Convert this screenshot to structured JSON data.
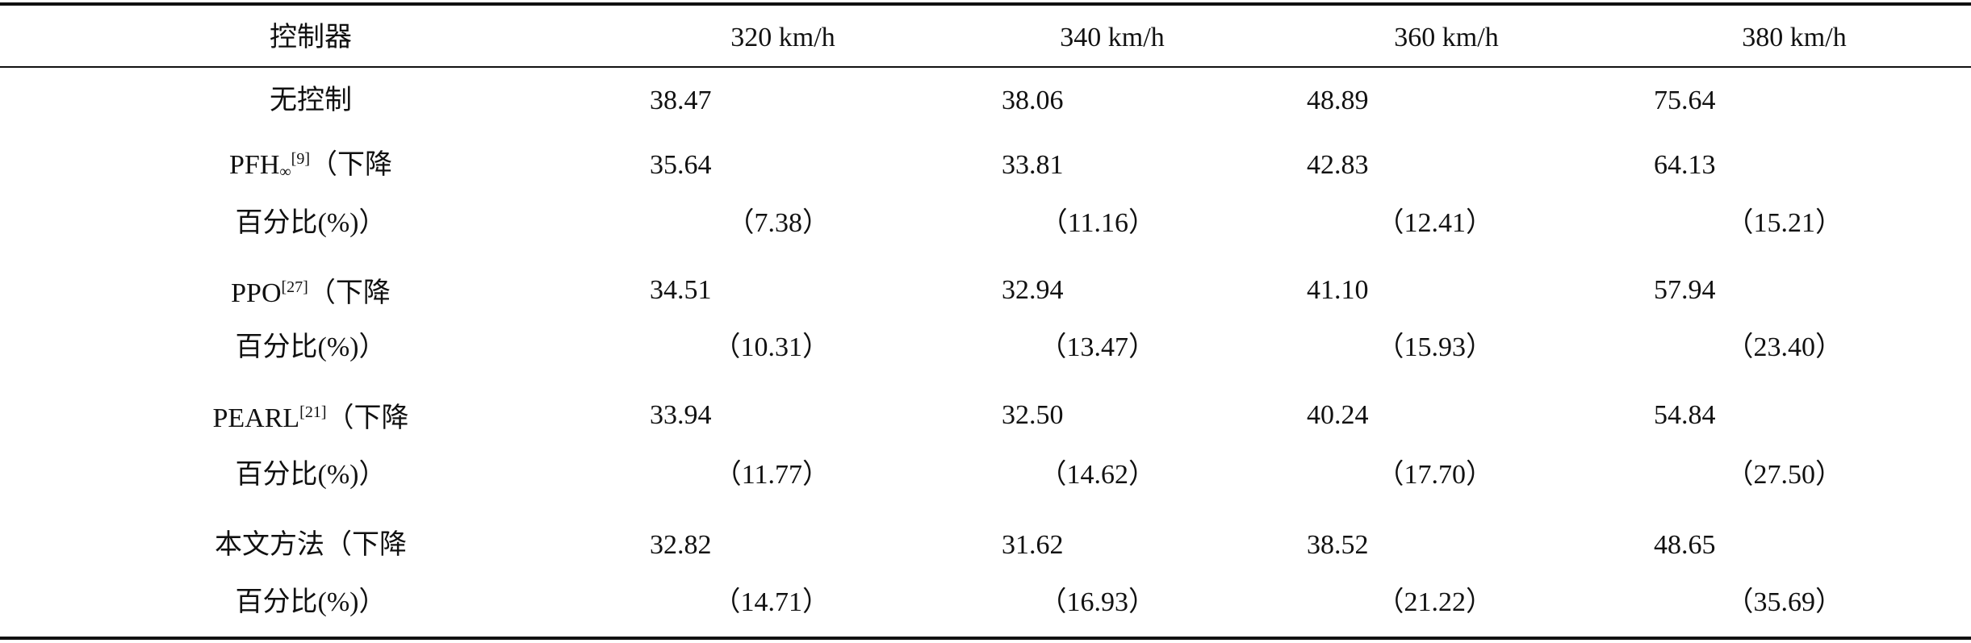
{
  "table": {
    "header": [
      "控制器",
      "320 km/h",
      "340 km/h",
      "360 km/h",
      "380 km/h"
    ],
    "rows": [
      {
        "name": "无控制",
        "values": [
          "38.47",
          "38.06",
          "48.89",
          "75.64"
        ]
      },
      {
        "name": "PFH",
        "sub": "∞",
        "ref": "[9]",
        "suffix": "（下降",
        "line2": "百分比(%)）",
        "values": [
          "35.64",
          "33.81",
          "42.83",
          "64.13"
        ],
        "reductions": [
          "（7.38）",
          "（11.16）",
          "（12.41）",
          "（15.21）"
        ]
      },
      {
        "name": "PPO",
        "ref": "[27]",
        "suffix": "（下降",
        "line2": "百分比(%)）",
        "values": [
          "34.51",
          "32.94",
          "41.10",
          "57.94"
        ],
        "reductions": [
          "（10.31）",
          "（13.47）",
          "（15.93）",
          "（23.40）"
        ]
      },
      {
        "name": "PEARL",
        "ref": "[21]",
        "suffix": "（下降",
        "line2": "百分比(%)）",
        "values": [
          "33.94",
          "32.50",
          "40.24",
          "54.84"
        ],
        "reductions": [
          "（11.77）",
          "（14.62）",
          "（17.70）",
          "（27.50）"
        ]
      },
      {
        "name": "本文方法",
        "suffix": "（下降",
        "line2": "百分比(%)）",
        "values": [
          "32.82",
          "31.62",
          "38.52",
          "48.65"
        ],
        "reductions": [
          "（14.71）",
          "（16.93）",
          "（21.22）",
          "（35.69）"
        ]
      }
    ]
  }
}
